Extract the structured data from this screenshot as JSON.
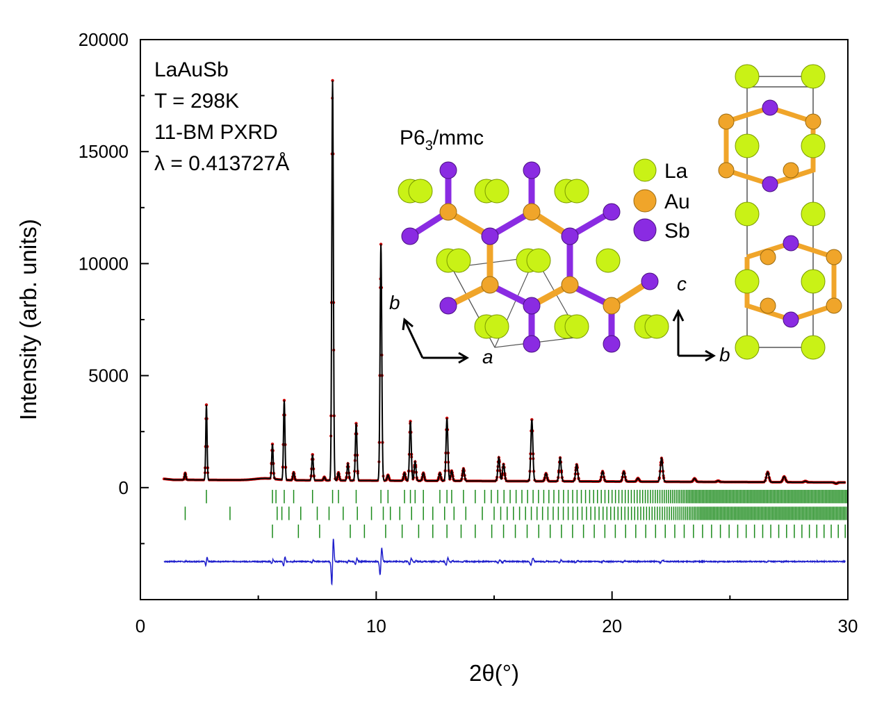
{
  "chart_data": {
    "type": "line",
    "title": "",
    "xlabel": "2θ(°)",
    "ylabel": "Intensity (arb. units)",
    "xlim": [
      0,
      30
    ],
    "ylim": [
      -5000,
      20000
    ],
    "x_ticks": [
      0,
      10,
      20,
      30
    ],
    "y_ticks": [
      0,
      5000,
      10000,
      15000,
      20000
    ],
    "grid": false,
    "annotations": [
      "LaAuSb",
      "T = 298K",
      "11-BM PXRD",
      "λ = 0.413727Å"
    ],
    "background_level": 350,
    "peaks": [
      {
        "x": 1.9,
        "y": 650
      },
      {
        "x": 2.8,
        "y": 3700
      },
      {
        "x": 5.6,
        "y": 1900
      },
      {
        "x": 6.1,
        "y": 3900
      },
      {
        "x": 6.5,
        "y": 700
      },
      {
        "x": 7.3,
        "y": 1500
      },
      {
        "x": 7.8,
        "y": 500
      },
      {
        "x": 8.15,
        "y": 18200
      },
      {
        "x": 8.4,
        "y": 700
      },
      {
        "x": 8.8,
        "y": 1100
      },
      {
        "x": 9.15,
        "y": 2900
      },
      {
        "x": 10.2,
        "y": 10900
      },
      {
        "x": 10.5,
        "y": 600
      },
      {
        "x": 11.2,
        "y": 700
      },
      {
        "x": 11.45,
        "y": 3000
      },
      {
        "x": 11.65,
        "y": 1200
      },
      {
        "x": 12.0,
        "y": 700
      },
      {
        "x": 12.7,
        "y": 700
      },
      {
        "x": 13.0,
        "y": 3150
      },
      {
        "x": 13.2,
        "y": 800
      },
      {
        "x": 13.7,
        "y": 900
      },
      {
        "x": 15.2,
        "y": 1400
      },
      {
        "x": 15.4,
        "y": 1100
      },
      {
        "x": 16.6,
        "y": 3100
      },
      {
        "x": 17.2,
        "y": 700
      },
      {
        "x": 17.8,
        "y": 1400
      },
      {
        "x": 18.5,
        "y": 1100
      },
      {
        "x": 19.6,
        "y": 800
      },
      {
        "x": 20.5,
        "y": 800
      },
      {
        "x": 21.1,
        "y": 500
      },
      {
        "x": 22.1,
        "y": 1400
      },
      {
        "x": 23.5,
        "y": 500
      },
      {
        "x": 24.5,
        "y": 400
      },
      {
        "x": 26.6,
        "y": 800
      },
      {
        "x": 27.3,
        "y": 600
      },
      {
        "x": 28.2,
        "y": 400
      },
      {
        "x": 29.5,
        "y": 300
      }
    ],
    "series": [
      {
        "name": "",
        "style": "observed",
        "color": "#cc0000"
      },
      {
        "name": "",
        "style": "calculated",
        "color": "#000000"
      },
      {
        "name": "",
        "style": "difference",
        "color": "#1f1fcc",
        "offset": -3300
      },
      {
        "name": "",
        "style": "bragg-positions",
        "color": "#1a8a1a"
      }
    ]
  },
  "inset": {
    "space_group": "P6",
    "space_group_sub": "3",
    "space_group_rest": "/mmc",
    "legend": [
      {
        "label": "La",
        "color": "#c9f216"
      },
      {
        "label": "Au",
        "color": "#f0a52a"
      },
      {
        "label": "Sb",
        "color": "#8a2be2"
      }
    ],
    "axes_left": {
      "up": "b",
      "right": "a"
    },
    "axes_right": {
      "up": "c",
      "right": "b"
    }
  }
}
